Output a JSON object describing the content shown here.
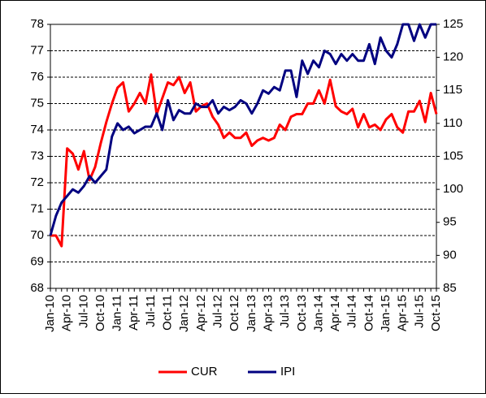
{
  "chart_data": {
    "type": "line",
    "categories": [
      "Jan-10",
      null,
      null,
      "Apr-10",
      null,
      null,
      "Jul-10",
      null,
      null,
      "Oct-10",
      null,
      null,
      "Jan-11",
      null,
      null,
      "Apr-11",
      null,
      null,
      "Jul-11",
      null,
      null,
      "Oct-11",
      null,
      null,
      "Jan-12",
      null,
      null,
      "Apr-12",
      null,
      null,
      "Jul-12",
      null,
      null,
      "Oct-12",
      null,
      null,
      "Jan-13",
      null,
      null,
      "Apr-13",
      null,
      null,
      "Jul-13",
      null,
      null,
      "Oct-13",
      null,
      null,
      "Jan-14",
      null,
      null,
      "Apr-14",
      null,
      null,
      "Jul-14",
      null,
      null,
      "Oct-14",
      null,
      null,
      "Jan-15",
      null,
      null,
      "Apr-15",
      null,
      null,
      "Jul-15",
      null,
      null,
      "Oct-15"
    ],
    "series": [
      {
        "name": "CUR",
        "color": "#ff0000",
        "values": [
          70.0,
          70.0,
          69.6,
          73.3,
          73.1,
          72.5,
          73.2,
          72.1,
          72.6,
          73.5,
          74.3,
          75.0,
          75.6,
          75.8,
          74.7,
          75.0,
          75.4,
          75.0,
          76.1,
          74.6,
          75.2,
          75.8,
          75.7,
          76.0,
          75.4,
          75.8,
          74.7,
          74.9,
          75.0,
          74.5,
          74.2,
          73.7,
          73.9,
          73.7,
          73.7,
          73.9,
          73.4,
          73.6,
          73.7,
          73.6,
          73.7,
          74.2,
          74.0,
          74.5,
          74.6,
          74.6,
          75.0,
          75.0,
          75.5,
          75.0,
          75.9,
          74.9,
          74.7,
          74.6,
          74.8,
          74.1,
          74.6,
          74.1,
          74.2,
          74.0,
          74.4,
          74.6,
          74.1,
          73.9,
          74.7,
          74.7,
          75.1,
          74.3,
          75.4,
          74.6
        ]
      },
      {
        "name": "IPI",
        "color": "#000080",
        "axis": "y2",
        "values": [
          93,
          96,
          98,
          99,
          100,
          99.5,
          100.5,
          102,
          101,
          102,
          103,
          108,
          110,
          109,
          109.5,
          108.5,
          109,
          109.5,
          109.5,
          111.5,
          109,
          113.5,
          110.5,
          112,
          111.5,
          111.5,
          113,
          112.5,
          112.5,
          113.5,
          111.5,
          112.5,
          112,
          112.5,
          113.5,
          113,
          111.5,
          113,
          115,
          114.5,
          115.5,
          115,
          118,
          118,
          114,
          119.5,
          117.5,
          119.5,
          118.5,
          121,
          120.5,
          119,
          120.5,
          119.5,
          120.5,
          119.5,
          119.5,
          122,
          119,
          123,
          121,
          120,
          122,
          125,
          125,
          122.5,
          125,
          123,
          125,
          125
        ]
      }
    ],
    "ylim": [
      68,
      78
    ],
    "yticks": [
      68,
      69,
      70,
      71,
      72,
      73,
      74,
      75,
      76,
      77,
      78
    ],
    "y2lim": [
      85,
      125
    ],
    "y2ticks": [
      85,
      90,
      95,
      100,
      105,
      110,
      115,
      120,
      125
    ],
    "grid": true,
    "legend": "bottom"
  }
}
